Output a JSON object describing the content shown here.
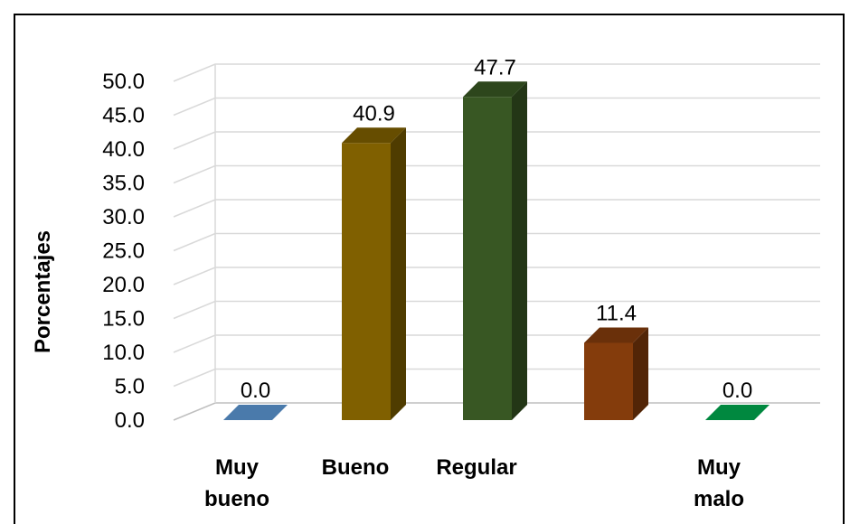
{
  "chart_data": {
    "type": "bar",
    "title": "",
    "xlabel": "",
    "ylabel": "Porcentajes",
    "categories": [
      [
        "Muy",
        "bueno"
      ],
      [
        "Bueno"
      ],
      [
        "Regular"
      ],
      [
        ""
      ],
      [
        "Muy",
        "malo"
      ]
    ],
    "values": [
      0.0,
      40.9,
      47.7,
      11.4,
      0.0
    ],
    "data_labels": [
      "0.0",
      "40.9",
      "47.7",
      "11.4",
      "0.0"
    ],
    "yticks": [
      "0.0",
      "5.0",
      "10.0",
      "15.0",
      "20.0",
      "25.0",
      "30.0",
      "35.0",
      "40.0",
      "45.0",
      "50.0"
    ],
    "ylim": [
      0,
      50
    ],
    "grid": true,
    "legend": "none",
    "bar_colors": [
      "#4a7aab",
      "#806000",
      "#385723",
      "#843c0c",
      "#00883f"
    ]
  }
}
